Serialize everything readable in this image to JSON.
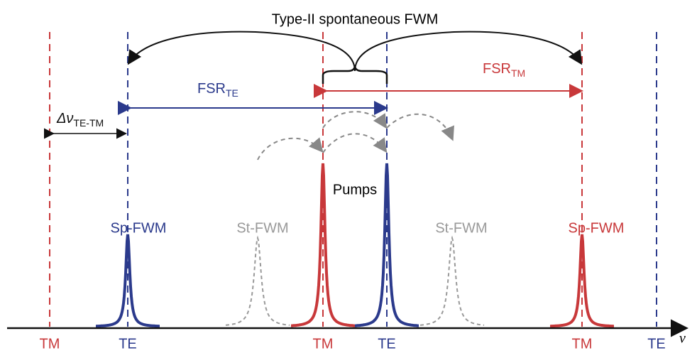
{
  "title": "Type-II spontaneous FWM",
  "fsr_te": {
    "base": "FSR",
    "sub": "TE"
  },
  "fsr_tm": {
    "base": "FSR",
    "sub": "TM"
  },
  "delta": {
    "base": "Δν",
    "sub": "TE-TM"
  },
  "pumps": "Pumps",
  "peaks": [
    "Sp-FWM",
    "St-FWM",
    "St-FWM",
    "Sp-FWM"
  ],
  "axis_labels": [
    "TM",
    "TE",
    "TM",
    "TE",
    "TM",
    "TE"
  ],
  "axis_name": "ν"
}
